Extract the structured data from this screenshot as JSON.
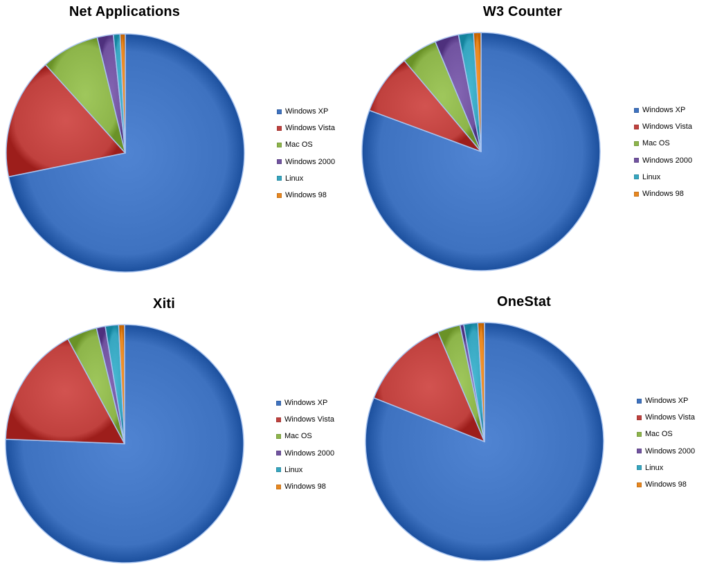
{
  "legend_labels": [
    "Windows XP",
    "Windows Vista",
    "Mac OS",
    "Windows 2000",
    "Linux",
    "Windows 98"
  ],
  "colors": [
    "#3e72c0",
    "#c0413e",
    "#8db54a",
    "#7153a0",
    "#36a6c0",
    "#e8871f"
  ],
  "chart_data": [
    {
      "type": "pie",
      "title": "Net Applications",
      "categories": [
        "Windows XP",
        "Windows Vista",
        "Mac OS",
        "Windows 2000",
        "Linux",
        "Windows 98"
      ],
      "values": [
        71.8,
        16.5,
        7.9,
        2.2,
        0.9,
        0.7
      ]
    },
    {
      "type": "pie",
      "title": "W3 Counter",
      "categories": [
        "Windows XP",
        "Windows Vista",
        "Mac OS",
        "Windows 2000",
        "Linux",
        "Windows 98"
      ],
      "values": [
        79.5,
        8.1,
        4.8,
        3.2,
        2.0,
        1.0
      ]
    },
    {
      "type": "pie",
      "title": "Xiti",
      "categories": [
        "Windows XP",
        "Windows Vista",
        "Mac OS",
        "Windows 2000",
        "Linux",
        "Windows 98"
      ],
      "values": [
        75.6,
        16.5,
        4.1,
        1.2,
        1.8,
        0.8
      ]
    },
    {
      "type": "pie",
      "title": "OneStat",
      "categories": [
        "Windows XP",
        "Windows Vista",
        "Mac OS",
        "Windows 2000",
        "Linux",
        "Windows 98"
      ],
      "values": [
        81.0,
        12.6,
        3.1,
        0.5,
        1.9,
        0.9
      ]
    }
  ]
}
